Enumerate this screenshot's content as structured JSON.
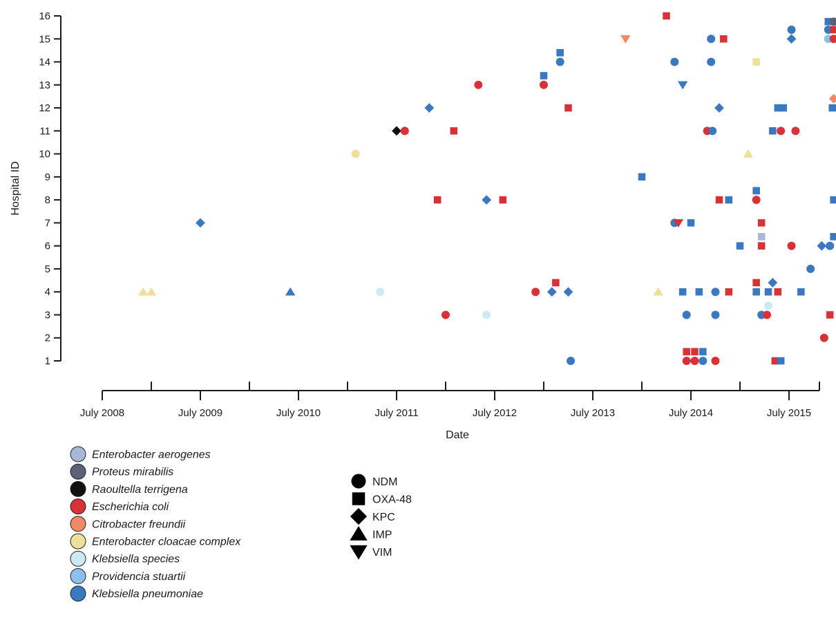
{
  "chart_data": {
    "type": "scatter",
    "xlabel": "Date",
    "ylabel": "Hospital ID",
    "x_ticks": [
      {
        "date": "2008-07",
        "label": "July 2008"
      },
      {
        "date": "2009-07",
        "label": "July 2009"
      },
      {
        "date": "2010-07",
        "label": "July 2010"
      },
      {
        "date": "2011-07",
        "label": "July 2011"
      },
      {
        "date": "2012-07",
        "label": "July 2012"
      },
      {
        "date": "2013-07",
        "label": "July 2013"
      },
      {
        "date": "2014-07",
        "label": "July 2014"
      },
      {
        "date": "2015-07",
        "label": "July 2015"
      }
    ],
    "xlim": [
      "2007-07",
      "2016-02"
    ],
    "ylim": [
      0,
      16
    ],
    "y_ticks": [
      1,
      2,
      3,
      4,
      5,
      6,
      7,
      8,
      9,
      10,
      11,
      12,
      13,
      14,
      15,
      16
    ],
    "grid": false,
    "species_legend": [
      {
        "key": "eae",
        "label": "Enterobacter aerogenes",
        "color": "#aab8d8"
      },
      {
        "key": "pmi",
        "label": "Proteus mirabilis",
        "color": "#5a6374"
      },
      {
        "key": "rte",
        "label": "Raoultella terrigena",
        "color": "#111111"
      },
      {
        "key": "eco",
        "label": "Escherichia coli",
        "color": "#d93236"
      },
      {
        "key": "cfr",
        "label": "Citrobacter freundii",
        "color": "#f0886a"
      },
      {
        "key": "ecc",
        "label": "Enterobacter cloacae complex",
        "color": "#ece09a"
      },
      {
        "key": "ksp",
        "label": "Klebsiella species",
        "color": "#cde9f6"
      },
      {
        "key": "pst",
        "label": "Providencia stuartii",
        "color": "#8cc0ea"
      },
      {
        "key": "kpn",
        "label": "Klebsiella pneumoniae",
        "color": "#3a78c0"
      }
    ],
    "carbapenemase_legend": [
      {
        "key": "NDM",
        "label": "NDM",
        "shape": "circle"
      },
      {
        "key": "OXA48",
        "label": "OXA-48",
        "shape": "square"
      },
      {
        "key": "KPC",
        "label": "KPC",
        "shape": "diamond"
      },
      {
        "key": "IMP",
        "label": "IMP",
        "shape": "triangle-up"
      },
      {
        "key": "VIM",
        "label": "VIM",
        "shape": "triangle-down"
      }
    ],
    "points": [
      {
        "x": "2008-12-01",
        "y": 4,
        "species": "ecc",
        "type": "IMP"
      },
      {
        "x": "2009-01-01",
        "y": 4,
        "species": "ecc",
        "type": "IMP"
      },
      {
        "x": "2009-07-01",
        "y": 7,
        "species": "kpn",
        "type": "KPC"
      },
      {
        "x": "2010-06-01",
        "y": 4,
        "species": "kpn",
        "type": "IMP"
      },
      {
        "x": "2011-02-01",
        "y": 10,
        "species": "ecc",
        "type": "NDM"
      },
      {
        "x": "2011-05-01",
        "y": 4,
        "species": "ksp",
        "type": "NDM"
      },
      {
        "x": "2011-07-01",
        "y": 11,
        "species": "rte",
        "type": "KPC"
      },
      {
        "x": "2011-08-01",
        "y": 11,
        "species": "eco",
        "type": "NDM"
      },
      {
        "x": "2011-11-01",
        "y": 12,
        "species": "kpn",
        "type": "KPC"
      },
      {
        "x": "2011-12-01",
        "y": 8,
        "species": "eco",
        "type": "OXA48"
      },
      {
        "x": "2012-01-01",
        "y": 3,
        "species": "eco",
        "type": "NDM"
      },
      {
        "x": "2012-02-01",
        "y": 11,
        "species": "eco",
        "type": "OXA48"
      },
      {
        "x": "2012-05-01",
        "y": 13,
        "species": "eco",
        "type": "NDM"
      },
      {
        "x": "2012-06-01",
        "y": 8,
        "species": "kpn",
        "type": "KPC"
      },
      {
        "x": "2012-06-01",
        "y": 3,
        "species": "ksp",
        "type": "NDM"
      },
      {
        "x": "2012-08-01",
        "y": 8,
        "species": "eco",
        "type": "OXA48"
      },
      {
        "x": "2012-12-01",
        "y": 4,
        "species": "eco",
        "type": "NDM"
      },
      {
        "x": "2013-01-01",
        "y": 13.4,
        "species": "kpn",
        "type": "OXA48"
      },
      {
        "x": "2013-01-01",
        "y": 13,
        "species": "eco",
        "type": "NDM"
      },
      {
        "x": "2013-02-01",
        "y": 4,
        "species": "kpn",
        "type": "KPC"
      },
      {
        "x": "2013-02-15",
        "y": 4.4,
        "species": "eco",
        "type": "OXA48"
      },
      {
        "x": "2013-03-01",
        "y": 14.4,
        "species": "kpn",
        "type": "OXA48"
      },
      {
        "x": "2013-03-01",
        "y": 14,
        "species": "kpn",
        "type": "NDM"
      },
      {
        "x": "2013-04-01",
        "y": 12,
        "species": "eco",
        "type": "OXA48"
      },
      {
        "x": "2013-04-01",
        "y": 4,
        "species": "kpn",
        "type": "KPC"
      },
      {
        "x": "2013-04-10",
        "y": 1,
        "species": "kpn",
        "type": "NDM"
      },
      {
        "x": "2013-11-01",
        "y": 15,
        "species": "cfr",
        "type": "VIM"
      },
      {
        "x": "2014-01-01",
        "y": 9,
        "species": "kpn",
        "type": "OXA48"
      },
      {
        "x": "2014-03-01",
        "y": 4,
        "species": "ecc",
        "type": "IMP"
      },
      {
        "x": "2014-04-01",
        "y": 16,
        "species": "eco",
        "type": "OXA48"
      },
      {
        "x": "2014-05-01",
        "y": 14,
        "species": "kpn",
        "type": "NDM"
      },
      {
        "x": "2014-05-01",
        "y": 7,
        "species": "kpn",
        "type": "NDM"
      },
      {
        "x": "2014-05-15",
        "y": 7,
        "species": "eco",
        "type": "VIM"
      },
      {
        "x": "2014-06-01",
        "y": 13,
        "species": "kpn",
        "type": "VIM"
      },
      {
        "x": "2014-06-01",
        "y": 4,
        "species": "kpn",
        "type": "OXA48"
      },
      {
        "x": "2014-06-15",
        "y": 3,
        "species": "kpn",
        "type": "NDM"
      },
      {
        "x": "2014-06-15",
        "y": 1.4,
        "species": "eco",
        "type": "OXA48"
      },
      {
        "x": "2014-06-15",
        "y": 1,
        "species": "eco",
        "type": "NDM"
      },
      {
        "x": "2014-07-01",
        "y": 7,
        "species": "kpn",
        "type": "OXA48"
      },
      {
        "x": "2014-07-15",
        "y": 1.4,
        "species": "eco",
        "type": "OXA48"
      },
      {
        "x": "2014-07-15",
        "y": 1,
        "species": "eco",
        "type": "NDM"
      },
      {
        "x": "2014-08-01",
        "y": 4,
        "species": "kpn",
        "type": "OXA48"
      },
      {
        "x": "2014-08-15",
        "y": 1.4,
        "species": "kpn",
        "type": "OXA48"
      },
      {
        "x": "2014-08-15",
        "y": 1,
        "species": "kpn",
        "type": "NDM"
      },
      {
        "x": "2014-09-01",
        "y": 11,
        "species": "eco",
        "type": "NDM"
      },
      {
        "x": "2014-09-15",
        "y": 15,
        "species": "kpn",
        "type": "NDM"
      },
      {
        "x": "2014-09-15",
        "y": 14,
        "species": "kpn",
        "type": "NDM"
      },
      {
        "x": "2014-09-20",
        "y": 11,
        "species": "kpn",
        "type": "NDM"
      },
      {
        "x": "2014-10-01",
        "y": 4,
        "species": "kpn",
        "type": "NDM"
      },
      {
        "x": "2014-10-01",
        "y": 3,
        "species": "kpn",
        "type": "NDM"
      },
      {
        "x": "2014-10-01",
        "y": 1,
        "species": "eco",
        "type": "NDM"
      },
      {
        "x": "2014-10-15",
        "y": 12,
        "species": "kpn",
        "type": "KPC"
      },
      {
        "x": "2014-10-15",
        "y": 8,
        "species": "eco",
        "type": "OXA48"
      },
      {
        "x": "2014-11-01",
        "y": 15,
        "species": "eco",
        "type": "OXA48"
      },
      {
        "x": "2014-11-20",
        "y": 8,
        "species": "kpn",
        "type": "OXA48"
      },
      {
        "x": "2014-11-20",
        "y": 4,
        "species": "eco",
        "type": "OXA48"
      },
      {
        "x": "2015-01-01",
        "y": 6,
        "species": "kpn",
        "type": "OXA48"
      },
      {
        "x": "2015-02-01",
        "y": 10,
        "species": "ecc",
        "type": "IMP"
      },
      {
        "x": "2015-03-01",
        "y": 14,
        "species": "ecc",
        "type": "OXA48"
      },
      {
        "x": "2015-03-01",
        "y": 8.4,
        "species": "kpn",
        "type": "OXA48"
      },
      {
        "x": "2015-03-01",
        "y": 8,
        "species": "eco",
        "type": "NDM"
      },
      {
        "x": "2015-03-01",
        "y": 4.4,
        "species": "eco",
        "type": "OXA48"
      },
      {
        "x": "2015-03-01",
        "y": 4,
        "species": "kpn",
        "type": "OXA48"
      },
      {
        "x": "2015-03-20",
        "y": 7,
        "species": "eco",
        "type": "OXA48"
      },
      {
        "x": "2015-03-20",
        "y": 6.4,
        "species": "eae",
        "type": "OXA48"
      },
      {
        "x": "2015-03-20",
        "y": 6,
        "species": "eco",
        "type": "OXA48"
      },
      {
        "x": "2015-03-20",
        "y": 3,
        "species": "kpn",
        "type": "NDM"
      },
      {
        "x": "2015-04-10",
        "y": 3,
        "species": "eco",
        "type": "NDM"
      },
      {
        "x": "2015-04-15",
        "y": 4,
        "species": "kpn",
        "type": "OXA48"
      },
      {
        "x": "2015-04-15",
        "y": 3.4,
        "species": "ksp",
        "type": "NDM"
      },
      {
        "x": "2015-05-01",
        "y": 11,
        "species": "kpn",
        "type": "OXA48"
      },
      {
        "x": "2015-05-01",
        "y": 4.4,
        "species": "kpn",
        "type": "KPC"
      },
      {
        "x": "2015-05-10",
        "y": 1,
        "species": "eco",
        "type": "OXA48"
      },
      {
        "x": "2015-05-20",
        "y": 12,
        "species": "kpn",
        "type": "OXA48"
      },
      {
        "x": "2015-05-20",
        "y": 4,
        "species": "eco",
        "type": "OXA48"
      },
      {
        "x": "2015-06-01",
        "y": 11,
        "species": "eco",
        "type": "NDM"
      },
      {
        "x": "2015-06-01",
        "y": 1,
        "species": "kpn",
        "type": "OXA48"
      },
      {
        "x": "2015-06-10",
        "y": 12,
        "species": "kpn",
        "type": "OXA48"
      },
      {
        "x": "2015-07-10",
        "y": 15.4,
        "species": "kpn",
        "type": "NDM"
      },
      {
        "x": "2015-07-10",
        "y": 15,
        "species": "kpn",
        "type": "KPC"
      },
      {
        "x": "2015-07-10",
        "y": 6,
        "species": "eco",
        "type": "NDM"
      },
      {
        "x": "2015-07-25",
        "y": 11,
        "species": "eco",
        "type": "NDM"
      },
      {
        "x": "2015-08-15",
        "y": 4,
        "species": "kpn",
        "type": "OXA48"
      },
      {
        "x": "2015-09-20",
        "y": 5,
        "species": "kpn",
        "type": "NDM"
      },
      {
        "x": "2015-11-01",
        "y": 6,
        "species": "kpn",
        "type": "KPC"
      },
      {
        "x": "2015-11-10",
        "y": 2,
        "species": "eco",
        "type": "NDM"
      },
      {
        "x": "2015-11-25",
        "y": 15.75,
        "species": "kpn",
        "type": "OXA48"
      },
      {
        "x": "2015-11-25",
        "y": 15.4,
        "species": "kpn",
        "type": "NDM"
      },
      {
        "x": "2015-11-25",
        "y": 15,
        "species": "pst",
        "type": "NDM"
      },
      {
        "x": "2015-12-01",
        "y": 3,
        "species": "eco",
        "type": "OXA48"
      },
      {
        "x": "2015-12-01",
        "y": 6,
        "species": "kpn",
        "type": "NDM"
      },
      {
        "x": "2015-12-10",
        "y": 12,
        "species": "kpn",
        "type": "OXA48"
      },
      {
        "x": "2015-12-15",
        "y": 12.4,
        "species": "cfr",
        "type": "KPC"
      },
      {
        "x": "2015-12-15",
        "y": 15.75,
        "species": "pmi",
        "type": "NDM"
      },
      {
        "x": "2015-12-15",
        "y": 15.4,
        "species": "eco",
        "type": "OXA48"
      },
      {
        "x": "2015-12-15",
        "y": 15,
        "species": "eco",
        "type": "NDM"
      },
      {
        "x": "2015-12-15",
        "y": 8,
        "species": "kpn",
        "type": "OXA48"
      },
      {
        "x": "2015-12-15",
        "y": 6.4,
        "species": "kpn",
        "type": "OXA48"
      },
      {
        "x": "2016-01-15",
        "y": 15.75,
        "species": "kpn",
        "type": "OXA48"
      },
      {
        "x": "2016-01-15",
        "y": 15.4,
        "species": "kpn",
        "type": "NDM"
      },
      {
        "x": "2016-01-15",
        "y": 15,
        "species": "pst",
        "type": "NDM"
      },
      {
        "x": "2016-01-10",
        "y": 3,
        "species": "eco",
        "type": "OXA48"
      },
      {
        "x": "2016-02-10",
        "y": 15,
        "species": "eco",
        "type": "OXA48"
      }
    ]
  }
}
